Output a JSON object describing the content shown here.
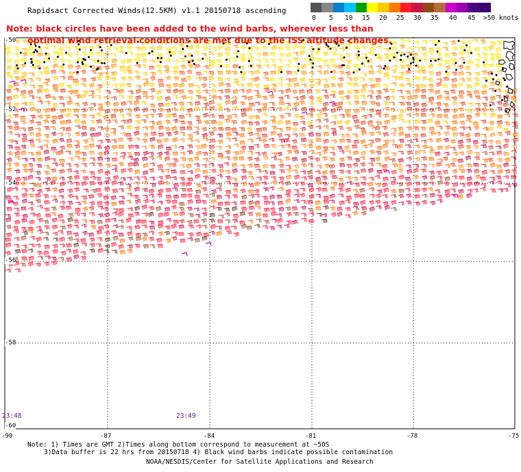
{
  "title": "Rapidsact Corrected Winds(12.5KM) v1.1 20150718 ascending",
  "note_line1": "Note: black circles have been added to the wind barbs, wherever less than",
  "note_line2": "optimal wind retrieval conditions are met due to the ISS altitude changes.",
  "scale": {
    "colors": [
      "#555555",
      "#878787",
      "#0a7fd0",
      "#00c3ff",
      "#00a000",
      "#ffff00",
      "#ffc800",
      "#ff7800",
      "#ff1e28",
      "#c81446",
      "#8c4b14",
      "#b46e3c",
      "#cc00cc",
      "#9a00b0",
      "#4b0082",
      "#3c006e"
    ],
    "labels": [
      "0",
      "5",
      "10",
      "15",
      "20",
      "25",
      "30",
      "35",
      "40",
      "45",
      ">50 knots"
    ]
  },
  "lat_labels": [
    "-50",
    "-52",
    "-54",
    "-56",
    "-58",
    "-60"
  ],
  "lon_labels": [
    "-90",
    "-87",
    "-84",
    "-81",
    "-78",
    "-75"
  ],
  "time_labels": [
    "23:48",
    "23:49"
  ],
  "footer": {
    "line1": "Note: 1) Times are GMT 2)Times along bottom correspond to measurement at ~50S",
    "line2": "3)Data buffer is 22 hrs from 20150718 4) Black wind barbs indicate possible contamination",
    "line3": "NOAA/NESDIS/Center for Satellite Applications and Research"
  }
}
